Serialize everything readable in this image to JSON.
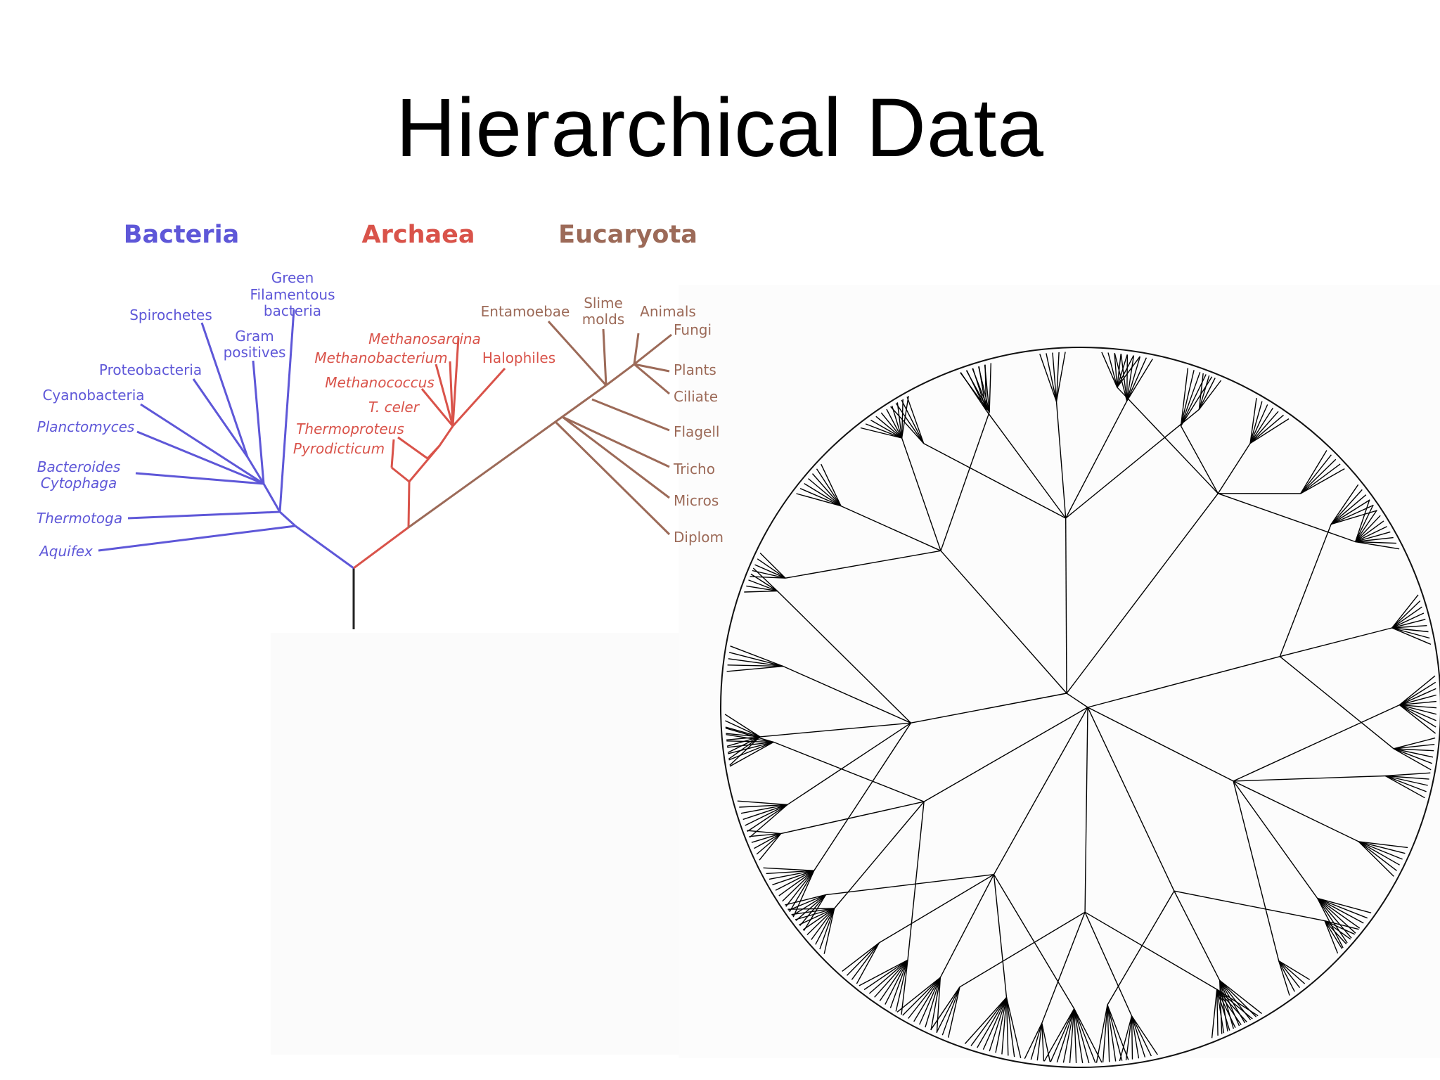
{
  "slide": {
    "title": "Hierarchical Data"
  },
  "tree_of_life": {
    "domains": [
      {
        "name": "Bacteria",
        "color": "#5e57d8"
      },
      {
        "name": "Archaea",
        "color": "#d9534a"
      },
      {
        "name": "Eucaryota",
        "color": "#9c6a58"
      }
    ],
    "bacteria": [
      "Green",
      "Filamentous",
      "bacteria",
      "Spirochetes",
      "Gram",
      "positives",
      "Proteobacteria",
      "Cyanobacteria",
      "Planctomyces",
      "Bacteroides",
      "Cytophaga",
      "Thermotoga",
      "Aquifex"
    ],
    "archaea": [
      "Methanosarcina",
      "Methanobacterium",
      "Halophiles",
      "Methanococcus",
      "T. celer",
      "Thermoproteus",
      "Pyrodicticum"
    ],
    "eucaryota": [
      "Entamoebae",
      "Slime",
      "molds",
      "Animals",
      "Fungi",
      "Plants",
      "Ciliate",
      "Flagell",
      "Tricho",
      "Micros",
      "Diplom"
    ]
  },
  "radial_tree": {
    "line_color": "#000000"
  }
}
